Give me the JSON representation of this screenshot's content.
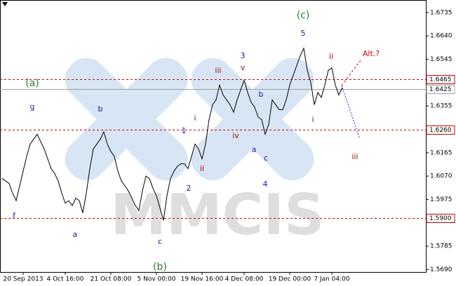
{
  "chart_data": {
    "type": "line",
    "watermark": "MMCIS",
    "categories": [
      null,
      null,
      null,
      null,
      null,
      null,
      "20 Sep 2013",
      null,
      null,
      null,
      null,
      null,
      null,
      null,
      null,
      null,
      null,
      null,
      "4 Oct 16:00",
      null,
      null,
      null,
      null,
      null,
      null,
      null,
      null,
      null,
      null,
      null,
      null,
      "21 Oct 08:00",
      null,
      null,
      null,
      null,
      null,
      null,
      null,
      null,
      null,
      null,
      null,
      null,
      "5 Nov 00:00",
      null,
      null,
      null,
      null,
      null,
      null,
      null,
      null,
      null,
      null,
      null,
      null,
      "19 Nov 16:00",
      null,
      null,
      null,
      null,
      null,
      null,
      null,
      null,
      null,
      null,
      null,
      "4 Dec 08:00",
      null,
      null,
      null,
      null,
      null,
      null,
      null,
      null,
      null,
      null,
      null,
      null,
      "19 Dec 00:00",
      null,
      null,
      null,
      null,
      null,
      null,
      null,
      null,
      null,
      null,
      null,
      "7 Jan 04:00",
      null,
      null,
      null
    ],
    "series": [
      {
        "color": "#000000",
        "values": [
          1.606,
          1.605,
          1.604,
          1.6,
          1.597,
          1.603,
          1.609,
          1.615,
          1.62,
          1.622,
          1.624,
          1.621,
          1.618,
          1.614,
          1.61,
          1.608,
          1.605,
          1.6,
          1.596,
          1.597,
          1.595,
          1.598,
          1.597,
          1.592,
          1.6,
          1.61,
          1.618,
          1.62,
          1.622,
          1.625,
          1.62,
          1.617,
          1.615,
          1.609,
          1.605,
          1.603,
          1.601,
          1.598,
          1.595,
          1.593,
          1.601,
          1.607,
          1.606,
          1.602,
          1.599,
          1.594,
          1.589,
          1.599,
          1.606,
          1.609,
          1.611,
          1.612,
          1.612,
          1.61,
          1.615,
          1.62,
          1.618,
          1.614,
          1.62,
          1.63,
          1.636,
          1.638,
          1.644,
          1.64,
          1.638,
          1.636,
          1.633,
          1.638,
          1.642,
          1.646,
          1.641,
          1.637,
          1.635,
          1.631,
          1.63,
          1.624,
          1.628,
          1.638,
          1.636,
          1.634,
          1.634,
          1.638,
          1.644,
          1.648,
          1.652,
          1.656,
          1.659,
          1.65,
          1.645,
          1.636,
          1.641,
          1.639,
          1.644,
          1.65,
          1.651,
          1.644,
          1.64,
          1.643
        ]
      }
    ],
    "ylim": [
      1.568,
      1.6786
    ],
    "yticks": [
      {
        "value": 1.569,
        "label": "1.5690"
      },
      1.5785,
      1.5975,
      {
        "value": 1.607,
        "label": "1.6070"
      },
      1.6165,
      1.6355,
      1.6545,
      {
        "value": 1.664,
        "label": "1.6640"
      },
      1.6735
    ],
    "levels": [
      {
        "value": 1.6465,
        "color": "#cc0000",
        "style": "dashed"
      },
      {
        "value": 1.6425,
        "color": "#a0a0a0",
        "style": "solid"
      },
      {
        "value": {
          "value": 1.626,
          "label": "1.6260"
        },
        "color": "#cc0000",
        "style": "dashed"
      },
      {
        "value": {
          "value": 1.59,
          "label": "1.5900"
        },
        "color": "#cc0000",
        "style": "dashed"
      }
    ],
    "annotations": [
      {
        "text": "(a)",
        "color": "#2e7d32"
      },
      {
        "text": "(b)",
        "color": "#2e7d32"
      },
      {
        "text": "(c)",
        "color": "#2e7d32"
      },
      {
        "text": "g",
        "color": "#1a1a9a"
      },
      {
        "text": "b",
        "color": "#1a1a9a"
      },
      {
        "text": "f",
        "color": "#1a1a9a"
      },
      {
        "text": "a",
        "color": "#1a1a9a"
      },
      {
        "text": "c",
        "color": "#1a1a9a"
      },
      {
        "text": "1",
        "color": "#1a1a9a"
      },
      {
        "text": "2",
        "color": "#1a1a9a"
      },
      {
        "text": "3",
        "color": "#1a1a9a"
      },
      {
        "text": "4",
        "color": "#1a1a9a"
      },
      {
        "text": "5",
        "color": "#1a1a9a"
      },
      {
        "text": "a",
        "color": "#1a1a9a"
      },
      {
        "text": "b",
        "color": "#1a1a9a"
      },
      {
        "text": "c",
        "color": "#1a1a9a"
      },
      {
        "text": "i",
        "color": "#a01010"
      },
      {
        "text": "ii",
        "color": "#a01010"
      },
      {
        "text": "iii",
        "color": "#a01010"
      },
      {
        "text": "iv",
        "color": "#a01010"
      },
      {
        "text": "v",
        "color": "#a01010"
      },
      {
        "text": "i",
        "color": "#a01010"
      },
      {
        "text": "ii",
        "color": "#a01010"
      },
      {
        "text": "iii",
        "color": "#a01010"
      },
      {
        "text": "Alt.?",
        "color": "#cc0000"
      }
    ]
  }
}
